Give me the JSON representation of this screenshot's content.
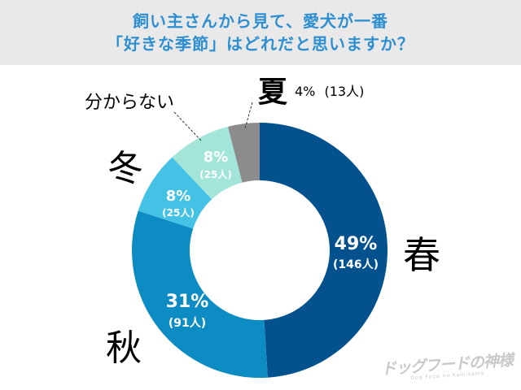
{
  "title": {
    "line1": "飼い主さんから見て、愛犬が一番",
    "line2": "「好きな季節」はどれだと思いますか？"
  },
  "chart_data": {
    "type": "donut",
    "slices": [
      {
        "name": "春",
        "percent": 49,
        "percent_label": "49%",
        "count_label": "(146人)",
        "color": "#03528e"
      },
      {
        "name": "秋",
        "percent": 31,
        "percent_label": "31%",
        "count_label": "(91人)",
        "color": "#0d8cc4"
      },
      {
        "name": "冬",
        "percent": 8,
        "percent_label": "8%",
        "count_label": "(25人)",
        "color": "#43c2e5"
      },
      {
        "name": "分からない",
        "percent": 8,
        "percent_label": "8%",
        "count_label": "(25人)",
        "color": "#a4e5da"
      },
      {
        "name": "夏",
        "percent": 4,
        "percent_label": "4%",
        "count_label": "(13人)",
        "color": "#8c8c8c"
      }
    ]
  },
  "watermark": {
    "main": "ドッグフードの神様",
    "sub": "Dog Food no Kamisama"
  }
}
